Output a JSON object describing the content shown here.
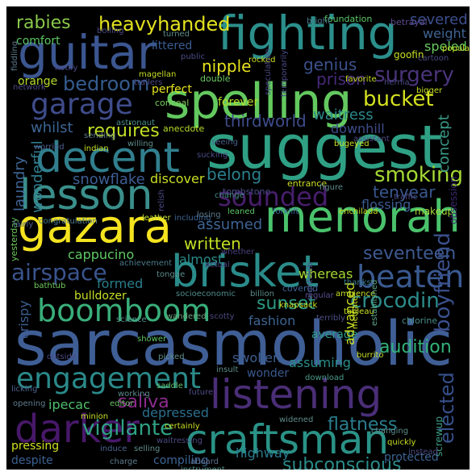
{
  "canvas": {
    "background": "#000000"
  },
  "words": [
    "sarcasmoholic",
    "suggest",
    "spelling",
    "fighting",
    "guitar",
    "brisket",
    "menorah",
    "gazara",
    "lesson",
    "decent",
    "listening",
    "craftsman",
    "darker",
    "engagement",
    "boomboom",
    "beaten",
    "garage",
    "sounded",
    "heavyhanded",
    "rabies",
    "bucket",
    "smoking",
    "airspace",
    "vigilante",
    "bedroom",
    "surgery",
    "crocodin",
    "boyfriend",
    "elected",
    "sunset",
    "seventeen",
    "written",
    "assumed",
    "saliva",
    "audition",
    "subconscious",
    "flatness",
    "requires",
    "thirdworld",
    "nipple",
    "genius",
    "prison",
    "severed",
    "weight",
    "speled",
    "tenyear",
    "belong",
    "concept",
    "laundry",
    "wonderful",
    "snowflake",
    "discover",
    "whilst",
    "waitress",
    "downhill",
    "cappucino",
    "almost",
    "whereas",
    "formed",
    "bulldozer",
    "crispy",
    "fashion",
    "average",
    "advanced",
    "assuming",
    "swollen",
    "depressed",
    "ipecac",
    "highway",
    "protected",
    "screwup",
    "despite",
    "pressing",
    "compiling",
    "wonder",
    "comfort",
    "littered",
    "perfect",
    "orange",
    "flossing",
    "makeup",
    "obsession",
    "goofin",
    "foundation",
    "betrayal",
    "bright",
    "double",
    "conceal",
    "anecdote",
    "forever",
    "entrance",
    "tombstone",
    "leaned",
    "forklift",
    "enchilada",
    "yesterday",
    "congratulation",
    "leather",
    "including",
    "whether",
    "covered",
    "thanks",
    "achievement",
    "actual",
    "tongue",
    "bathtub",
    "socioeconomic",
    "billion",
    "ambience",
    "knapsack",
    "regular",
    "wandered",
    "scotty",
    "tableau",
    "terribly",
    "nightclub",
    "chlorine",
    "science",
    "mediate",
    "established",
    "burrito",
    "shower",
    "outside",
    "picked",
    "insult",
    "download",
    "licking",
    "working",
    "future",
    "saddle",
    "opening",
    "editor",
    "minion",
    "widened",
    "certainly",
    "waitressing",
    "changing",
    "quickly",
    "instead",
    "induce",
    "selling",
    "charge",
    "aboard",
    "instrument",
    "losing",
    "change",
    "figure",
    "traffic",
    "relish",
    "fairly",
    "sending",
    "willing",
    "worried",
    "indian",
    "astronaut",
    "seeing",
    "bugeyed",
    "hernia",
    "bigger",
    "temporarily",
    "assistant",
    "magellan",
    "trailers",
    "favorite",
    "cartoon",
    "popular",
    "turned",
    "boiling",
    "notify",
    "network",
    "fiddling",
    "rocked",
    "public",
    "speculation",
    "sucking"
  ]
}
